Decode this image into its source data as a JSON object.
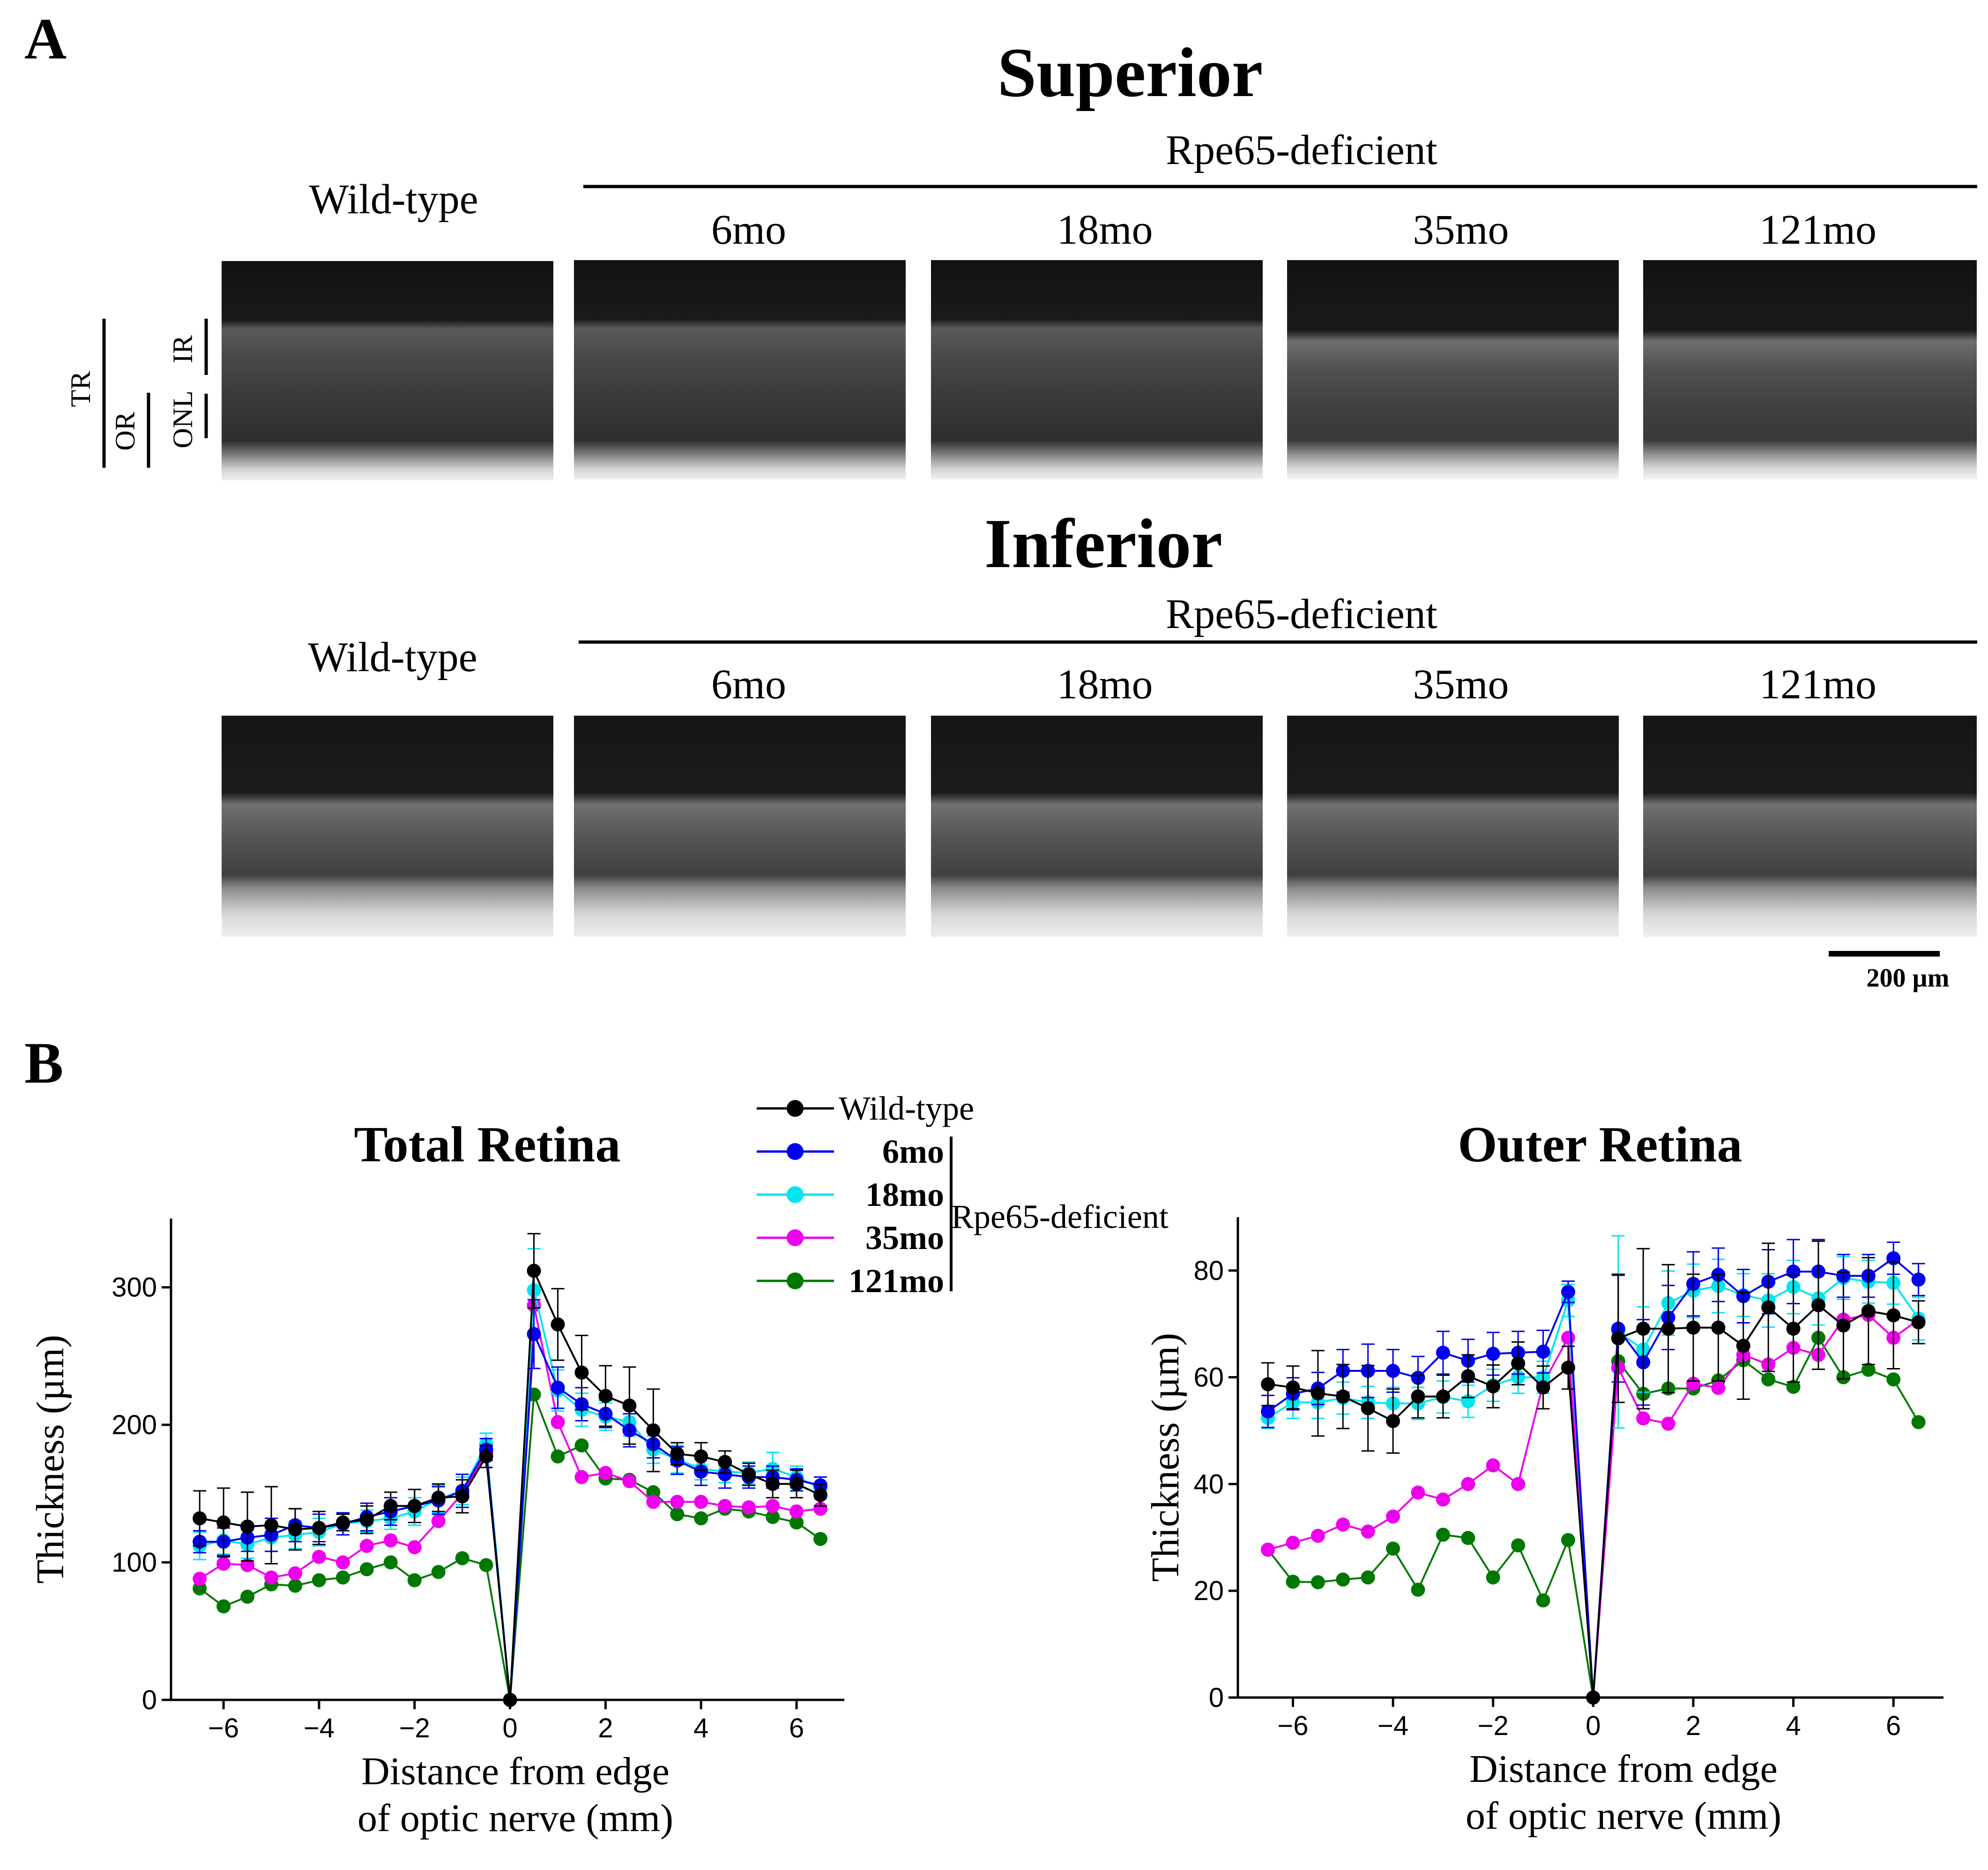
{
  "panel_a": {
    "letter": "A",
    "superior": {
      "heading": "Superior",
      "group_label": "Rpe65-deficient",
      "wild_type_label": "Wild-type",
      "ages": [
        "6mo",
        "18mo",
        "35mo",
        "121mo"
      ]
    },
    "inferior": {
      "heading": "Inferior",
      "group_label": "Rpe65-deficient",
      "wild_type_label": "Wild-type",
      "ages": [
        "6mo",
        "18mo",
        "35mo",
        "121mo"
      ]
    },
    "layer_labels": {
      "tr": "TR",
      "or": "OR",
      "ir": "IR",
      "onl": "ONL"
    },
    "scale_bar": "200 µm"
  },
  "panel_b": {
    "letter": "B",
    "legend": {
      "entries": [
        {
          "label": "Wild-type",
          "color": "#000000"
        },
        {
          "label": "6mo",
          "color": "#0000ee"
        },
        {
          "label": "18mo",
          "color": "#00e5ee"
        },
        {
          "label": "35mo",
          "color": "#ee00ee"
        },
        {
          "label": "121mo",
          "color": "#007800"
        }
      ],
      "group_label": "Rpe65-deficient"
    }
  },
  "chart_data": [
    {
      "type": "line",
      "title": "Total Retina",
      "xlabel": "Distance from edge\nof optic nerve (mm)",
      "ylabel": "Thickness (µm)",
      "xlim": [
        -7.1,
        7.0
      ],
      "ylim": [
        0,
        350
      ],
      "xticks": [
        -6,
        -4,
        -2,
        0,
        2,
        4,
        6
      ],
      "yticks": [
        0,
        100,
        200,
        300
      ],
      "x": [
        -6.5,
        -6,
        -5.5,
        -5,
        -4.5,
        -4,
        -3.5,
        -3,
        -2.5,
        -2,
        -1.5,
        -1,
        -0.5,
        0,
        0.5,
        1,
        1.5,
        2,
        2.5,
        3,
        3.5,
        4,
        4.5,
        5,
        5.5,
        6,
        6.5
      ],
      "series": [
        {
          "name": "Wild-type",
          "color": "#000000",
          "values": [
            132,
            129,
            126,
            127,
            124,
            125,
            129,
            131,
            141,
            141,
            147,
            148,
            177,
            0,
            312,
            273,
            238,
            221,
            214,
            196,
            179,
            177,
            173,
            164,
            157,
            157,
            149
          ],
          "errors": [
            20,
            25,
            25,
            28,
            15,
            12,
            6,
            10,
            10,
            12,
            10,
            12,
            8,
            0,
            27,
            26,
            27,
            22,
            28,
            30,
            8,
            10,
            8,
            8,
            10,
            10,
            8
          ]
        },
        {
          "name": "6mo",
          "color": "#0000ee",
          "values": [
            115,
            115,
            118,
            120,
            127,
            125,
            128,
            133,
            137,
            141,
            145,
            152,
            182,
            0,
            266,
            227,
            215,
            208,
            196,
            186,
            174,
            166,
            164,
            162,
            162,
            160,
            156
          ],
          "errors": [
            8,
            10,
            10,
            12,
            12,
            10,
            8,
            10,
            10,
            12,
            10,
            12,
            8,
            0,
            25,
            15,
            12,
            10,
            12,
            10,
            10,
            10,
            10,
            8,
            8,
            8,
            6
          ]
        },
        {
          "name": "18mo",
          "color": "#00e5ee",
          "values": [
            112,
            116,
            113,
            118,
            120,
            122,
            128,
            130,
            132,
            137,
            146,
            152,
            186,
            0,
            298,
            225,
            211,
            206,
            202,
            182,
            175,
            168,
            166,
            165,
            168,
            162,
            154
          ],
          "errors": [
            10,
            10,
            10,
            10,
            10,
            10,
            8,
            8,
            8,
            10,
            10,
            10,
            8,
            0,
            30,
            15,
            12,
            10,
            10,
            10,
            10,
            8,
            8,
            8,
            12,
            8,
            8
          ]
        },
        {
          "name": "35mo",
          "color": "#ee00ee",
          "values": [
            88,
            99,
            98,
            89,
            92,
            104,
            100,
            112,
            116,
            111,
            130,
            150,
            180,
            0,
            287,
            202,
            162,
            165,
            159,
            144,
            144,
            144,
            141,
            140,
            141,
            137,
            139
          ],
          "errors": null
        },
        {
          "name": "121mo",
          "color": "#007800",
          "values": [
            81,
            68,
            75,
            84,
            83,
            87,
            89,
            95,
            100,
            87,
            93,
            103,
            98,
            0,
            222,
            177,
            185,
            161,
            160,
            151,
            135,
            132,
            139,
            137,
            133,
            129,
            117
          ],
          "errors": null
        }
      ]
    },
    {
      "type": "line",
      "title": "Outer Retina",
      "xlabel": "Distance from edge\nof optic nerve (mm)",
      "ylabel": "Thickness (µm)",
      "xlim": [
        -7.1,
        7.0
      ],
      "ylim": [
        0,
        90
      ],
      "xticks": [
        -6,
        -4,
        -2,
        0,
        2,
        4,
        6
      ],
      "yticks": [
        0,
        20,
        40,
        60,
        80
      ],
      "x": [
        -6.5,
        -6,
        -5.5,
        -5,
        -4.5,
        -4,
        -3.5,
        -3,
        -2.5,
        -2,
        -1.5,
        -1,
        -0.5,
        0,
        0.5,
        1,
        1.5,
        2,
        2.5,
        3,
        3.5,
        4,
        4.5,
        5,
        5.5,
        6,
        6.5
      ],
      "series": [
        {
          "name": "Wild-type",
          "color": "#000000",
          "values": [
            58.7,
            58.1,
            57.0,
            56.4,
            54.2,
            51.8,
            56.4,
            56.4,
            60.2,
            58.3,
            62.6,
            58.1,
            61.8,
            0,
            67.3,
            69.1,
            69.1,
            69.3,
            69.3,
            65.9,
            73.1,
            69.1,
            73.5,
            69.7,
            72.4,
            71.6,
            70.3
          ],
          "errors": [
            4,
            4,
            8,
            6,
            8,
            6,
            4,
            4,
            4,
            4,
            4,
            4,
            4,
            0,
            12,
            15,
            12,
            10,
            10,
            10,
            12,
            10,
            12,
            10,
            10,
            10,
            4
          ]
        },
        {
          "name": "6mo",
          "color": "#0000ee",
          "values": [
            53.6,
            56.9,
            57.9,
            61.2,
            61.2,
            61.2,
            59.9,
            64.6,
            63.1,
            64.4,
            64.6,
            64.8,
            76.0,
            0,
            69.1,
            62.8,
            71.2,
            77.5,
            79.2,
            75.2,
            77.9,
            79.8,
            79.8,
            79.0,
            79.0,
            82.3,
            78.3
          ],
          "errors": [
            3,
            3,
            3,
            4,
            5,
            4,
            4,
            4,
            4,
            4,
            4,
            4,
            2,
            0,
            10,
            8,
            6,
            6,
            5,
            5,
            6,
            6,
            6,
            4,
            4,
            3,
            3
          ]
        },
        {
          "name": "18mo",
          "color": "#00e5ee",
          "values": [
            52.4,
            55.3,
            55.3,
            56.1,
            55.3,
            55.1,
            55.1,
            56.3,
            55.5,
            58.5,
            60.0,
            60.0,
            74.4,
            0,
            68.5,
            65.2,
            73.9,
            76.2,
            77.1,
            75.4,
            74.4,
            76.9,
            74.8,
            78.6,
            77.9,
            77.7,
            71.0
          ],
          "errors": [
            2,
            3,
            3,
            3,
            3,
            3,
            3,
            3,
            3,
            3,
            3,
            3,
            3,
            0,
            18,
            8,
            6,
            5,
            5,
            4,
            5,
            5,
            5,
            4,
            4,
            4,
            4
          ]
        },
        {
          "name": "35mo",
          "color": "#ee00ee",
          "values": [
            27.7,
            29.0,
            30.3,
            32.4,
            31.1,
            33.9,
            38.4,
            37.1,
            40.0,
            43.5,
            40.0,
            58.8,
            67.4,
            0,
            61.8,
            52.3,
            51.3,
            58.8,
            58.0,
            64.2,
            62.4,
            65.5,
            64.2,
            70.8,
            71.7,
            67.4,
            70.8
          ],
          "errors": null
        },
        {
          "name": "121mo",
          "color": "#007800",
          "values": [
            27.7,
            21.7,
            21.6,
            22.1,
            22.5,
            27.9,
            20.2,
            30.5,
            29.9,
            22.5,
            28.5,
            18.2,
            29.5,
            0,
            63.0,
            56.9,
            57.9,
            57.9,
            59.4,
            63.2,
            59.6,
            58.2,
            67.4,
            60.0,
            61.4,
            59.6,
            51.6
          ],
          "errors": null
        }
      ]
    }
  ]
}
